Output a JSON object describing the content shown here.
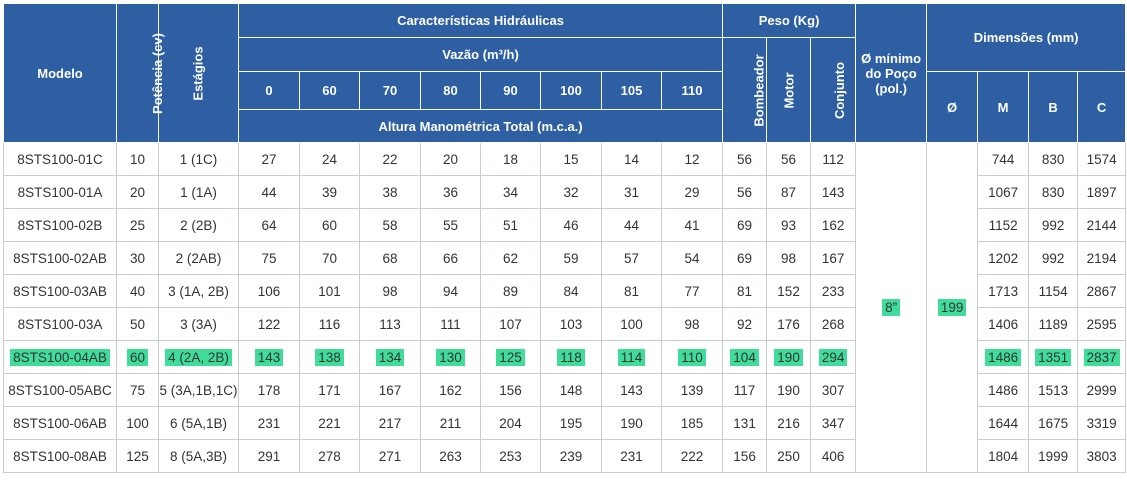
{
  "headers": {
    "modelo": "Modelo",
    "potencia": "Potência (cv)",
    "estagios": "Estágios",
    "hidraulicas": "Características Hidráulicas",
    "vazao": "Vazão (m³/h)",
    "flows": [
      "0",
      "60",
      "70",
      "80",
      "90",
      "100",
      "105",
      "110"
    ],
    "altura": "Altura Manométrica Total (m.c.a.)",
    "peso": "Peso (Kg)",
    "bombeador": "Bombeador",
    "motor": "Motor",
    "conjunto": "Conjunto",
    "poco": "Ø mínimo do Poço (pol.)",
    "dimensoes": "Dimensões (mm)",
    "diam": "Ø",
    "m": "M",
    "b": "B",
    "c": "C"
  },
  "merged": {
    "poco": "8”",
    "diam": "199"
  },
  "highlight_color": "#3fdc9a",
  "header_color": "#2d5fa2",
  "rows": [
    {
      "modelo": "8STS100-01C",
      "pot": "10",
      "est": "1 (1C)",
      "h": [
        "27",
        "24",
        "22",
        "20",
        "18",
        "15",
        "14",
        "12"
      ],
      "bomb": "56",
      "motor": "56",
      "conj": "112",
      "m": "744",
      "b": "830",
      "c": "1574"
    },
    {
      "modelo": "8STS100-01A",
      "pot": "20",
      "est": "1 (1A)",
      "h": [
        "44",
        "39",
        "38",
        "36",
        "34",
        "32",
        "31",
        "29"
      ],
      "bomb": "56",
      "motor": "87",
      "conj": "143",
      "m": "1067",
      "b": "830",
      "c": "1897"
    },
    {
      "modelo": "8STS100-02B",
      "pot": "25",
      "est": "2 (2B)",
      "h": [
        "64",
        "60",
        "58",
        "55",
        "51",
        "46",
        "44",
        "41"
      ],
      "bomb": "69",
      "motor": "93",
      "conj": "162",
      "m": "1152",
      "b": "992",
      "c": "2144"
    },
    {
      "modelo": "8STS100-02AB",
      "pot": "30",
      "est": "2 (2AB)",
      "h": [
        "75",
        "70",
        "68",
        "66",
        "62",
        "59",
        "57",
        "54"
      ],
      "bomb": "69",
      "motor": "98",
      "conj": "167",
      "m": "1202",
      "b": "992",
      "c": "2194"
    },
    {
      "modelo": "8STS100-03AB",
      "pot": "40",
      "est": "3 (1A, 2B)",
      "h": [
        "106",
        "101",
        "98",
        "94",
        "89",
        "84",
        "81",
        "77"
      ],
      "bomb": "81",
      "motor": "152",
      "conj": "233",
      "m": "1713",
      "b": "1154",
      "c": "2867"
    },
    {
      "modelo": "8STS100-03A",
      "pot": "50",
      "est": "3 (3A)",
      "h": [
        "122",
        "116",
        "113",
        "111",
        "107",
        "103",
        "100",
        "98"
      ],
      "bomb": "92",
      "motor": "176",
      "conj": "268",
      "m": "1406",
      "b": "1189",
      "c": "2595"
    },
    {
      "modelo": "8STS100-04AB",
      "pot": "60",
      "est": "4 (2A, 2B)",
      "h": [
        "143",
        "138",
        "134",
        "130",
        "125",
        "118",
        "114",
        "110"
      ],
      "bomb": "104",
      "motor": "190",
      "conj": "294",
      "m": "1486",
      "b": "1351",
      "c": "2837",
      "highlight": true
    },
    {
      "modelo": "8STS100-05ABC",
      "pot": "75",
      "est": "5 (3A,1B,1C)",
      "h": [
        "178",
        "171",
        "167",
        "162",
        "156",
        "148",
        "143",
        "139"
      ],
      "bomb": "117",
      "motor": "190",
      "conj": "307",
      "m": "1486",
      "b": "1513",
      "c": "2999"
    },
    {
      "modelo": "8STS100-06AB",
      "pot": "100",
      "est": "6 (5A,1B)",
      "h": [
        "231",
        "221",
        "217",
        "211",
        "204",
        "195",
        "190",
        "185"
      ],
      "bomb": "131",
      "motor": "216",
      "conj": "347",
      "m": "1644",
      "b": "1675",
      "c": "3319"
    },
    {
      "modelo": "8STS100-08AB",
      "pot": "125",
      "est": "8 (5A,3B)",
      "h": [
        "291",
        "278",
        "271",
        "263",
        "253",
        "239",
        "231",
        "222"
      ],
      "bomb": "156",
      "motor": "250",
      "conj": "406",
      "m": "1804",
      "b": "1999",
      "c": "3803"
    }
  ]
}
